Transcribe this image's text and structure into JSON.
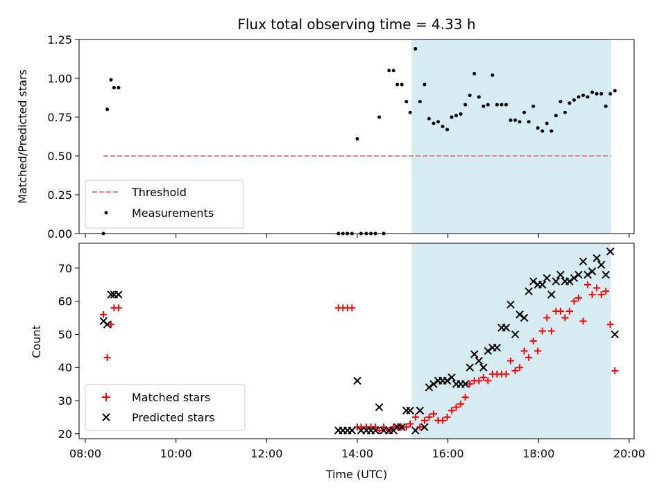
{
  "chart_data": [
    {
      "type": "scatter",
      "title": "Flux total observing time = 4.33 h",
      "xlabel": "",
      "ylabel": "Matched/Predicted stars",
      "xlim": [
        "08:00",
        "20:00"
      ],
      "ylim": [
        0,
        1.25
      ],
      "yticks": [
        "0.00",
        "0.25",
        "0.50",
        "0.75",
        "1.00",
        "1.25"
      ],
      "shaded_span": {
        "start": "15:12",
        "end": "19:36",
        "color": "#add8e6"
      },
      "legend": {
        "placement": "lower-left"
      },
      "series": [
        {
          "name": "Threshold",
          "style": "dashed-line",
          "color": "#f08080",
          "x": [
            "08:24",
            "19:36"
          ],
          "y": [
            0.5,
            0.5
          ]
        },
        {
          "name": "Measurements",
          "style": "dot",
          "color": "#000000",
          "x": [
            "08:24",
            "08:29",
            "08:34",
            "08:38",
            "08:44",
            "13:35",
            "13:41",
            "13:47",
            "13:53",
            "14:00",
            "14:05",
            "14:12",
            "14:18",
            "14:24",
            "14:29",
            "14:35",
            "14:42",
            "14:48",
            "14:53",
            "14:59",
            "15:05",
            "15:10",
            "15:17",
            "15:23",
            "15:29",
            "15:35",
            "15:41",
            "15:47",
            "15:53",
            "15:59",
            "16:05",
            "16:11",
            "16:17",
            "16:23",
            "16:29",
            "16:35",
            "16:41",
            "16:47",
            "16:53",
            "16:59",
            "17:05",
            "17:11",
            "17:17",
            "17:23",
            "17:29",
            "17:35",
            "17:41",
            "17:47",
            "17:53",
            "17:59",
            "18:05",
            "18:11",
            "18:17",
            "18:23",
            "18:29",
            "18:35",
            "18:41",
            "18:47",
            "18:53",
            "18:59",
            "19:05",
            "19:11",
            "19:17",
            "19:23",
            "19:29",
            "19:35",
            "19:41"
          ],
          "y": [
            0.0,
            0.8,
            0.99,
            0.94,
            0.94,
            0.0,
            0.0,
            0.0,
            0.0,
            0.61,
            0.0,
            0.0,
            0.0,
            0.0,
            0.75,
            0.0,
            1.05,
            1.05,
            0.96,
            0.96,
            0.85,
            0.78,
            1.19,
            0.85,
            0.96,
            0.74,
            0.71,
            0.72,
            0.69,
            0.67,
            0.75,
            0.76,
            0.77,
            0.83,
            0.89,
            1.03,
            0.88,
            0.82,
            0.83,
            1.02,
            0.83,
            0.83,
            0.83,
            0.73,
            0.73,
            0.72,
            0.78,
            0.72,
            0.82,
            0.68,
            0.66,
            0.71,
            0.66,
            0.76,
            0.85,
            0.78,
            0.84,
            0.86,
            0.88,
            0.89,
            0.88,
            0.91,
            0.9,
            0.9,
            0.82,
            0.9,
            0.92
          ]
        }
      ]
    },
    {
      "type": "scatter",
      "title": "",
      "xlabel": "Time (UTC)",
      "ylabel": "Count",
      "xlim": [
        "08:00",
        "20:00"
      ],
      "xticks": [
        "08:00",
        "10:00",
        "12:00",
        "14:00",
        "16:00",
        "18:00",
        "20:00"
      ],
      "ylim": [
        18.5,
        77.5
      ],
      "yticks": [
        "20",
        "30",
        "40",
        "50",
        "60",
        "70"
      ],
      "shaded_span": {
        "start": "15:12",
        "end": "19:36",
        "color": "#add8e6"
      },
      "legend": {
        "placement": "lower-left"
      },
      "series": [
        {
          "name": "Matched stars",
          "style": "plus",
          "color": "#ff0000",
          "x": [
            "08:24",
            "08:29",
            "08:34",
            "08:38",
            "08:44",
            "13:35",
            "13:41",
            "13:47",
            "13:53",
            "14:00",
            "14:05",
            "14:12",
            "14:18",
            "14:24",
            "14:29",
            "14:35",
            "14:42",
            "14:48",
            "14:53",
            "14:59",
            "15:05",
            "15:10",
            "15:17",
            "15:23",
            "15:29",
            "15:35",
            "15:41",
            "15:47",
            "15:53",
            "15:59",
            "16:05",
            "16:11",
            "16:17",
            "16:23",
            "16:29",
            "16:35",
            "16:41",
            "16:47",
            "16:53",
            "16:59",
            "17:05",
            "17:11",
            "17:17",
            "17:23",
            "17:29",
            "17:35",
            "17:41",
            "17:47",
            "17:53",
            "17:59",
            "18:05",
            "18:11",
            "18:17",
            "18:23",
            "18:29",
            "18:35",
            "18:41",
            "18:47",
            "18:53",
            "18:59",
            "19:05",
            "19:11",
            "19:17",
            "19:23",
            "19:29",
            "19:35",
            "19:41"
          ],
          "y": [
            56,
            43,
            53,
            58,
            58,
            58,
            58,
            58,
            58,
            22,
            22,
            22,
            22,
            22,
            21,
            22,
            21,
            22,
            22,
            22,
            22,
            23,
            25,
            22,
            24,
            25,
            26,
            24,
            24,
            25,
            27,
            28,
            29,
            31,
            35,
            36,
            36,
            37,
            36,
            38,
            38,
            38,
            38,
            42,
            39,
            40,
            45,
            43,
            48,
            45,
            51,
            55,
            51,
            57,
            57,
            55,
            57,
            60,
            61,
            54,
            65,
            62,
            64,
            62,
            63,
            53,
            39
          ]
        },
        {
          "name": "Predicted stars",
          "style": "x",
          "color": "#000000",
          "x": [
            "08:24",
            "08:29",
            "08:34",
            "08:38",
            "08:44",
            "13:35",
            "13:41",
            "13:47",
            "13:53",
            "14:00",
            "14:05",
            "14:12",
            "14:18",
            "14:24",
            "14:29",
            "14:35",
            "14:42",
            "14:48",
            "14:53",
            "14:59",
            "15:05",
            "15:10",
            "15:17",
            "15:23",
            "15:29",
            "15:35",
            "15:41",
            "15:47",
            "15:53",
            "15:59",
            "16:05",
            "16:11",
            "16:17",
            "16:23",
            "16:29",
            "16:35",
            "16:41",
            "16:47",
            "16:53",
            "16:59",
            "17:05",
            "17:11",
            "17:17",
            "17:23",
            "17:29",
            "17:35",
            "17:41",
            "17:47",
            "17:53",
            "17:59",
            "18:05",
            "18:11",
            "18:17",
            "18:23",
            "18:29",
            "18:35",
            "18:41",
            "18:47",
            "18:53",
            "18:59",
            "19:05",
            "19:11",
            "19:17",
            "19:23",
            "19:29",
            "19:35",
            "19:41"
          ],
          "y": [
            54,
            53,
            62,
            62,
            62,
            21,
            21,
            21,
            21,
            36,
            21,
            21,
            21,
            21,
            28,
            21,
            21,
            21,
            22,
            22,
            27,
            27,
            21,
            27,
            22,
            34,
            35,
            36,
            36,
            36,
            37,
            35,
            35,
            35,
            40,
            44,
            42,
            40,
            45,
            46,
            46,
            52,
            52,
            59,
            50,
            56,
            55,
            63,
            66,
            65,
            65,
            67,
            62,
            66,
            68,
            66,
            66,
            67,
            68,
            72,
            68,
            69,
            73,
            71,
            68,
            75,
            50
          ]
        }
      ]
    }
  ]
}
